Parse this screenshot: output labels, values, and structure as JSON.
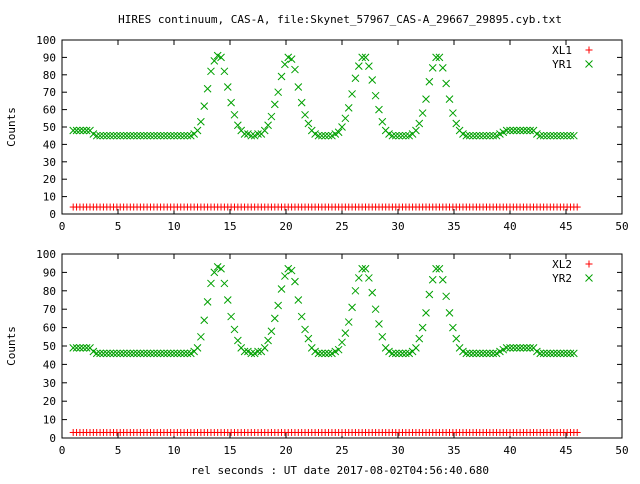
{
  "title": "HIRES continuum, CAS-A, file:Skynet_57967_CAS-A_29667_29895.cyb.txt",
  "xlabel": "rel seconds : UT date 2017-08-02T04:56:40.680",
  "colors": {
    "xl": "#ff0000",
    "yr": "#00a000",
    "axes": "#000000"
  },
  "chart_data": [
    {
      "type": "scatter",
      "ylabel": "Counts",
      "xlim": [
        0,
        50
      ],
      "ylim": [
        0,
        100
      ],
      "x_ticks": [
        0,
        5,
        10,
        15,
        20,
        25,
        30,
        35,
        40,
        45,
        50
      ],
      "y_ticks": [
        0,
        10,
        20,
        30,
        40,
        50,
        60,
        70,
        80,
        90,
        100
      ],
      "grid": false,
      "legend_position": "top-right",
      "series": [
        {
          "name": "XL1",
          "marker": "plus",
          "color": "#ff0000",
          "x_start": 1.0,
          "x_end": 46.0,
          "x_step": 0.3,
          "y_constant": 4
        },
        {
          "name": "YR1",
          "marker": "cross",
          "color": "#00a000",
          "x_start": 1.0,
          "x_step": 0.3,
          "values": [
            48,
            48,
            48,
            48,
            48,
            48,
            46,
            45,
            45,
            45,
            45,
            45,
            45,
            45,
            45,
            45,
            45,
            45,
            45,
            45,
            45,
            45,
            45,
            45,
            45,
            45,
            45,
            45,
            45,
            45,
            45,
            45,
            45,
            45,
            45,
            45,
            46,
            48,
            53,
            62,
            72,
            82,
            88,
            91,
            90,
            82,
            73,
            64,
            57,
            51,
            48,
            46,
            46,
            45,
            45,
            46,
            46,
            48,
            51,
            56,
            63,
            70,
            79,
            86,
            90,
            89,
            83,
            73,
            64,
            57,
            52,
            48,
            46,
            45,
            45,
            45,
            45,
            45,
            46,
            47,
            50,
            55,
            61,
            69,
            78,
            85,
            90,
            90,
            85,
            77,
            68,
            60,
            53,
            48,
            46,
            45,
            45,
            45,
            45,
            45,
            45,
            46,
            48,
            52,
            58,
            66,
            76,
            84,
            90,
            90,
            84,
            75,
            66,
            58,
            52,
            48,
            46,
            45,
            45,
            45,
            45,
            45,
            45,
            45,
            45,
            45,
            45,
            46,
            47,
            48,
            48,
            48,
            48,
            48,
            48,
            48,
            48,
            48,
            46,
            45,
            45,
            45,
            45,
            45,
            45,
            45,
            45,
            45,
            45,
            45
          ]
        }
      ]
    },
    {
      "type": "scatter",
      "ylabel": "Counts",
      "xlim": [
        0,
        50
      ],
      "ylim": [
        0,
        100
      ],
      "x_ticks": [
        0,
        5,
        10,
        15,
        20,
        25,
        30,
        35,
        40,
        45,
        50
      ],
      "y_ticks": [
        0,
        10,
        20,
        30,
        40,
        50,
        60,
        70,
        80,
        90,
        100
      ],
      "grid": false,
      "legend_position": "top-right",
      "series": [
        {
          "name": "XL2",
          "marker": "plus",
          "color": "#ff0000",
          "x_start": 1.0,
          "x_end": 46.0,
          "x_step": 0.3,
          "y_constant": 3
        },
        {
          "name": "YR2",
          "marker": "cross",
          "color": "#00a000",
          "x_start": 1.0,
          "x_step": 0.3,
          "values": [
            49,
            49,
            49,
            49,
            49,
            49,
            47,
            46,
            46,
            46,
            46,
            46,
            46,
            46,
            46,
            46,
            46,
            46,
            46,
            46,
            46,
            46,
            46,
            46,
            46,
            46,
            46,
            46,
            46,
            46,
            46,
            46,
            46,
            46,
            46,
            46,
            47,
            49,
            55,
            64,
            74,
            84,
            90,
            93,
            92,
            84,
            75,
            66,
            59,
            53,
            49,
            47,
            47,
            46,
            46,
            47,
            47,
            49,
            53,
            58,
            65,
            72,
            81,
            88,
            92,
            91,
            85,
            75,
            66,
            59,
            54,
            49,
            47,
            46,
            46,
            46,
            46,
            46,
            47,
            48,
            52,
            57,
            63,
            71,
            80,
            87,
            92,
            92,
            87,
            79,
            70,
            62,
            55,
            49,
            47,
            46,
            46,
            46,
            46,
            46,
            46,
            47,
            49,
            54,
            60,
            68,
            78,
            86,
            92,
            92,
            86,
            77,
            68,
            60,
            54,
            49,
            47,
            46,
            46,
            46,
            46,
            46,
            46,
            46,
            46,
            46,
            46,
            47,
            48,
            49,
            49,
            49,
            49,
            49,
            49,
            49,
            49,
            49,
            47,
            46,
            46,
            46,
            46,
            46,
            46,
            46,
            46,
            46,
            46,
            46
          ]
        }
      ]
    }
  ]
}
